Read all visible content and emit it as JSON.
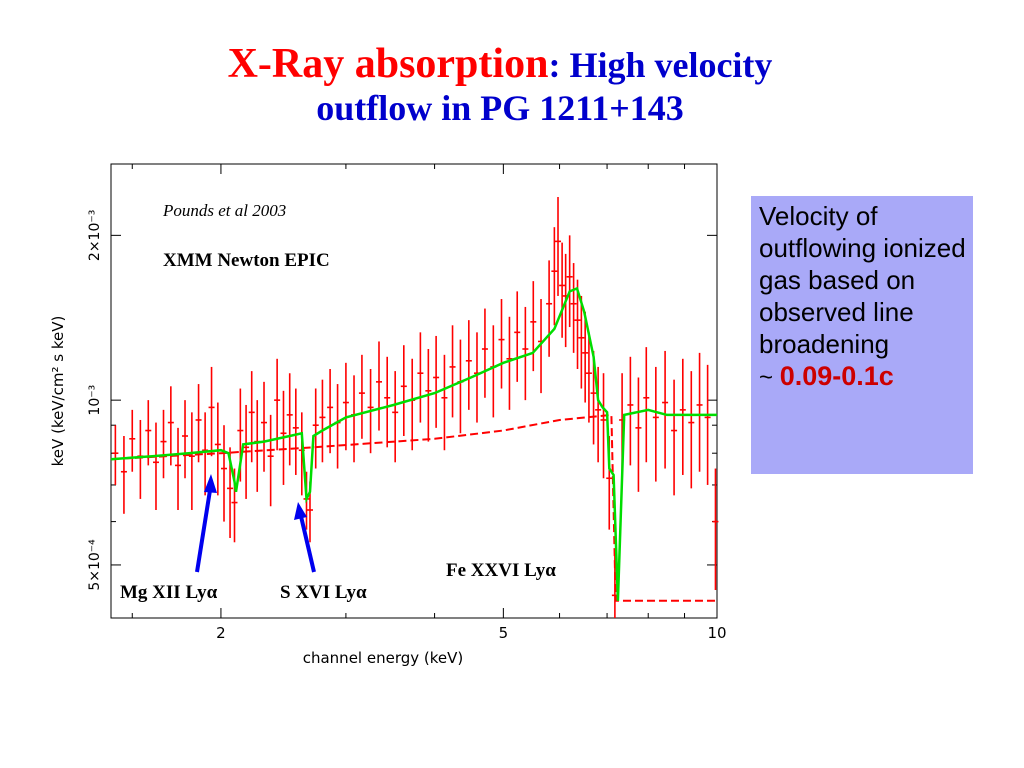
{
  "title": {
    "part1": "X-Ray absorption",
    "colon": ":",
    "part2": " High velocity",
    "line2": "outflow in  PG 1211+143"
  },
  "note": {
    "text": "Velocity of outflowing ionized gas based on observed line broadening",
    "tilde": "~ ",
    "value": "0.09-0.1c"
  },
  "chart_data": {
    "type": "line",
    "xlabel": "channel energy (keV)",
    "ylabel": "keV (keV/cm² s keV)",
    "xscale": "log",
    "yscale": "log",
    "xlim": [
      1.4,
      10
    ],
    "ylim": [
      0.0004,
      0.0027
    ],
    "xticks": [
      {
        "value": 2,
        "label": "2"
      },
      {
        "value": 5,
        "label": "5"
      },
      {
        "value": 10,
        "label": "10"
      }
    ],
    "yticks": [
      {
        "value": 0.0005,
        "label": "5×10⁻⁴"
      },
      {
        "value": 0.001,
        "label": "10⁻³"
      },
      {
        "value": 0.002,
        "label": "2×10⁻³"
      }
    ],
    "annotations": {
      "reference": "Pounds et al 2003",
      "instrument": "XMM Newton EPIC",
      "mg_line": "Mg XII Lyα",
      "s_line": "S XVI Lyα",
      "fe_line": "Fe XXVI Lyα"
    },
    "colors": {
      "data": "#ff0000",
      "model": "#00dd00",
      "continuum": "#ff0000",
      "arrows": "#0000ee"
    },
    "series": [
      {
        "style": "dashed",
        "x": [
          1.4,
          2.0,
          2.7,
          4.0,
          5.0,
          6.0,
          7.1,
          7.2,
          10.0
        ],
        "y": [
          0.00078,
          0.0008,
          0.00082,
          0.00085,
          0.00088,
          0.00092,
          0.00094,
          0.00043,
          0.00043
        ]
      },
      {
        "style": "solid",
        "x": [
          1.4,
          1.6,
          1.8,
          2.0,
          2.05,
          2.09,
          2.1,
          2.15,
          2.3,
          2.5,
          2.6,
          2.64,
          2.67,
          2.7,
          2.78,
          3.0,
          3.5,
          4.0,
          4.5,
          5.0,
          5.5,
          5.9,
          6.2,
          6.35,
          6.5,
          6.7,
          6.8,
          6.9,
          7.0,
          7.05,
          7.15,
          7.25,
          7.4,
          8.0,
          8.5,
          10.0
        ],
        "y": [
          0.00078,
          0.00079,
          0.0008,
          0.00081,
          0.0008,
          0.00071,
          0.00068,
          0.00083,
          0.00084,
          0.00086,
          0.00087,
          0.00066,
          0.00068,
          0.00086,
          0.00088,
          0.00093,
          0.00098,
          0.00103,
          0.0011,
          0.00117,
          0.00122,
          0.00135,
          0.00158,
          0.0016,
          0.00145,
          0.0012,
          0.001,
          0.00097,
          0.00095,
          0.00075,
          0.00073,
          0.00043,
          0.00094,
          0.00096,
          0.00094,
          0.00094
        ]
      },
      {
        "style": "errorbars",
        "points": [
          [
            1.42,
            0.0008,
            0.0001
          ],
          [
            1.46,
            0.00074,
            0.00012
          ],
          [
            1.5,
            0.00085,
            0.00011
          ],
          [
            1.54,
            0.00079,
            0.00013
          ],
          [
            1.58,
            0.00088,
            0.00012
          ],
          [
            1.62,
            0.00077,
            0.00014
          ],
          [
            1.66,
            0.00084,
            0.00012
          ],
          [
            1.7,
            0.00091,
            0.00015
          ],
          [
            1.74,
            0.00076,
            0.00013
          ],
          [
            1.78,
            0.00086,
            0.00014
          ],
          [
            1.82,
            0.00079,
            0.00016
          ],
          [
            1.86,
            0.00092,
            0.00015
          ],
          [
            1.9,
            0.00081,
            0.00014
          ],
          [
            1.94,
            0.00097,
            0.00018
          ],
          [
            1.98,
            0.00083,
            0.00016
          ],
          [
            2.02,
            0.00075,
            0.00015
          ],
          [
            2.06,
            0.00069,
            0.00013
          ],
          [
            2.09,
            0.00065,
            0.0001
          ],
          [
            2.13,
            0.00088,
            0.00017
          ],
          [
            2.17,
            0.00082,
            0.00016
          ],
          [
            2.21,
            0.00095,
            0.00018
          ],
          [
            2.25,
            0.00084,
            0.00016
          ],
          [
            2.3,
            0.00091,
            0.00017
          ],
          [
            2.35,
            0.00079,
            0.00015
          ],
          [
            2.4,
            0.001,
            0.00019
          ],
          [
            2.45,
            0.00087,
            0.00017
          ],
          [
            2.5,
            0.00094,
            0.00018
          ],
          [
            2.55,
            0.00089,
            0.00016
          ],
          [
            2.6,
            0.00081,
            0.00014
          ],
          [
            2.64,
            0.00066,
            8e-05
          ],
          [
            2.67,
            0.00063,
            8e-05
          ],
          [
            2.72,
            0.0009,
            0.00015
          ],
          [
            2.78,
            0.00093,
            0.00016
          ],
          [
            2.85,
            0.00097,
            0.00017
          ],
          [
            2.92,
            0.00091,
            0.00016
          ],
          [
            3.0,
            0.00099,
            0.00018
          ],
          [
            3.08,
            0.00094,
            0.00017
          ],
          [
            3.16,
            0.00103,
            0.00018
          ],
          [
            3.25,
            0.00097,
            0.00017
          ],
          [
            3.34,
            0.00108,
            0.0002
          ],
          [
            3.43,
            0.00101,
            0.00019
          ],
          [
            3.52,
            0.00095,
            0.00018
          ],
          [
            3.62,
            0.00106,
            0.0002
          ],
          [
            3.72,
            0.001,
            0.00019
          ],
          [
            3.82,
            0.00112,
            0.00021
          ],
          [
            3.92,
            0.00104,
            0.0002
          ],
          [
            4.02,
            0.0011,
            0.00021
          ],
          [
            4.13,
            0.00101,
            0.0002
          ],
          [
            4.24,
            0.00115,
            0.00022
          ],
          [
            4.35,
            0.00108,
            0.00021
          ],
          [
            4.47,
            0.00118,
            0.00022
          ],
          [
            4.59,
            0.00112,
            0.00021
          ],
          [
            4.71,
            0.00124,
            0.00023
          ],
          [
            4.84,
            0.00115,
            0.00022
          ],
          [
            4.97,
            0.00129,
            0.00024
          ],
          [
            5.1,
            0.00119,
            0.00023
          ],
          [
            5.23,
            0.00133,
            0.00025
          ],
          [
            5.37,
            0.00124,
            0.00024
          ],
          [
            5.51,
            0.00139,
            0.00026
          ],
          [
            5.65,
            0.00128,
            0.00025
          ],
          [
            5.8,
            0.0015,
            0.0003
          ],
          [
            5.9,
            0.00172,
            0.00035
          ],
          [
            5.97,
            0.00195,
            0.0004
          ],
          [
            6.05,
            0.00162,
            0.00032
          ],
          [
            6.12,
            0.00155,
            0.0003
          ],
          [
            6.2,
            0.00168,
            0.00032
          ],
          [
            6.28,
            0.0015,
            0.00028
          ],
          [
            6.36,
            0.0014,
            0.00026
          ],
          [
            6.44,
            0.0013,
            0.00025
          ],
          [
            6.52,
            0.00122,
            0.00023
          ],
          [
            6.6,
            0.00112,
            0.00021
          ],
          [
            6.7,
            0.00103,
            0.0002
          ],
          [
            6.8,
            0.00096,
            0.00019
          ],
          [
            6.92,
            0.00092,
            0.0002
          ],
          [
            7.05,
            0.00072,
            0.00014
          ],
          [
            7.18,
            0.00044,
            8e-05
          ],
          [
            7.35,
            0.00092,
            0.0002
          ],
          [
            7.55,
            0.00098,
            0.00022
          ],
          [
            7.75,
            0.00089,
            0.00021
          ],
          [
            7.95,
            0.00101,
            0.00024
          ],
          [
            8.2,
            0.00093,
            0.00022
          ],
          [
            8.45,
            0.00099,
            0.00024
          ],
          [
            8.7,
            0.00088,
            0.00021
          ],
          [
            8.95,
            0.00096,
            0.00023
          ],
          [
            9.2,
            0.00091,
            0.00022
          ],
          [
            9.45,
            0.00098,
            0.00024
          ],
          [
            9.7,
            0.00093,
            0.00023
          ],
          [
            9.95,
            0.0006,
            0.00015
          ]
        ]
      }
    ]
  }
}
